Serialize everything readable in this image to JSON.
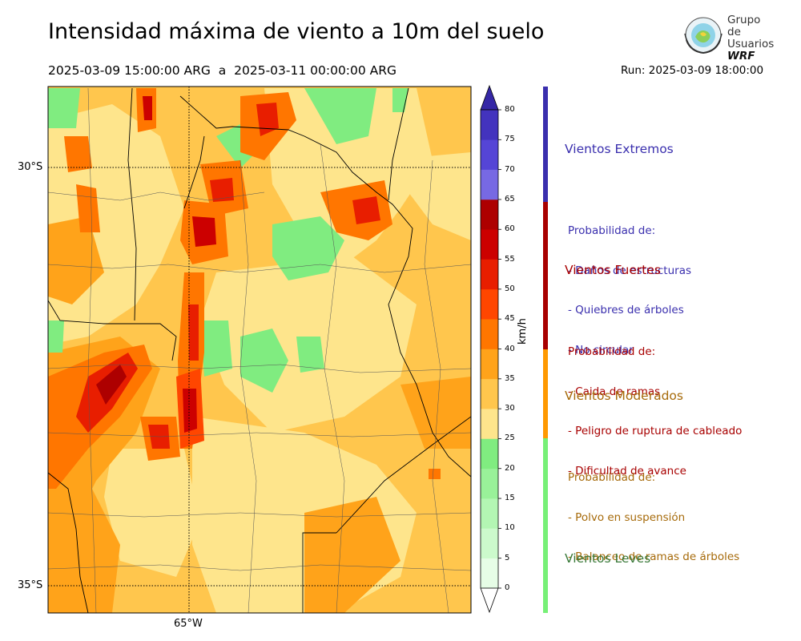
{
  "header": {
    "title": "Intensidad máxima de viento a 10m del suelo",
    "daterange": "2025-03-09 15:00:00 ARG  a  2025-03-11 00:00:00 ARG",
    "run": "Run: 2025-03-09 18:00:00"
  },
  "logo": {
    "line1": "Grupo de",
    "line2": "Usuarios",
    "line3": "WRF",
    "icon": "globe-logo-icon"
  },
  "map": {
    "lat_labels": [
      "30°S",
      "35°S"
    ],
    "lon_labels": [
      "65°W"
    ]
  },
  "colorbar": {
    "unit": "km/h",
    "ticks": [
      "0",
      "5",
      "10",
      "15",
      "20",
      "25",
      "30",
      "35",
      "40",
      "45",
      "50",
      "55",
      "60",
      "65",
      "70",
      "75",
      "80"
    ],
    "colors": [
      "#e6fde6",
      "#ccfacc",
      "#b3f6b3",
      "#99f199",
      "#80ec80",
      "#fee58c",
      "#ffc64d",
      "#ffa31a",
      "#ff7600",
      "#ff4600",
      "#e81e00",
      "#cc0000",
      "#ad0000",
      "#7769e3",
      "#5545d6",
      "#4333be"
    ],
    "over_color": "#3527a6"
  },
  "categories": [
    {
      "title": "Vientos Extremos",
      "desc_header": "Probabilidad de:",
      "items": [
        "- Daños de estructuras",
        "- Quiebres de árboles",
        "- No circular"
      ],
      "color": "#3a2fae"
    },
    {
      "title": "Vientos Fuertes",
      "desc_header": "Probabilidad de:",
      "items": [
        "- Caida de ramas",
        "- Peligro de ruptura de cableado",
        "- Dificultad de avance"
      ],
      "color": "#a80000"
    },
    {
      "title": "Vientos Moderados",
      "desc_header": "Probabilidad de:",
      "items": [
        "- Polvo en suspensión",
        "- Balanceo de ramas de árboles"
      ],
      "color": "#a66a0a"
    },
    {
      "title": "Vientos Leves",
      "desc_header": "",
      "items": [],
      "color": "#3a7a3a"
    }
  ],
  "category_bar_colors": [
    "#3a2fae",
    "#a80000",
    "#ff9900",
    "#77f077"
  ]
}
